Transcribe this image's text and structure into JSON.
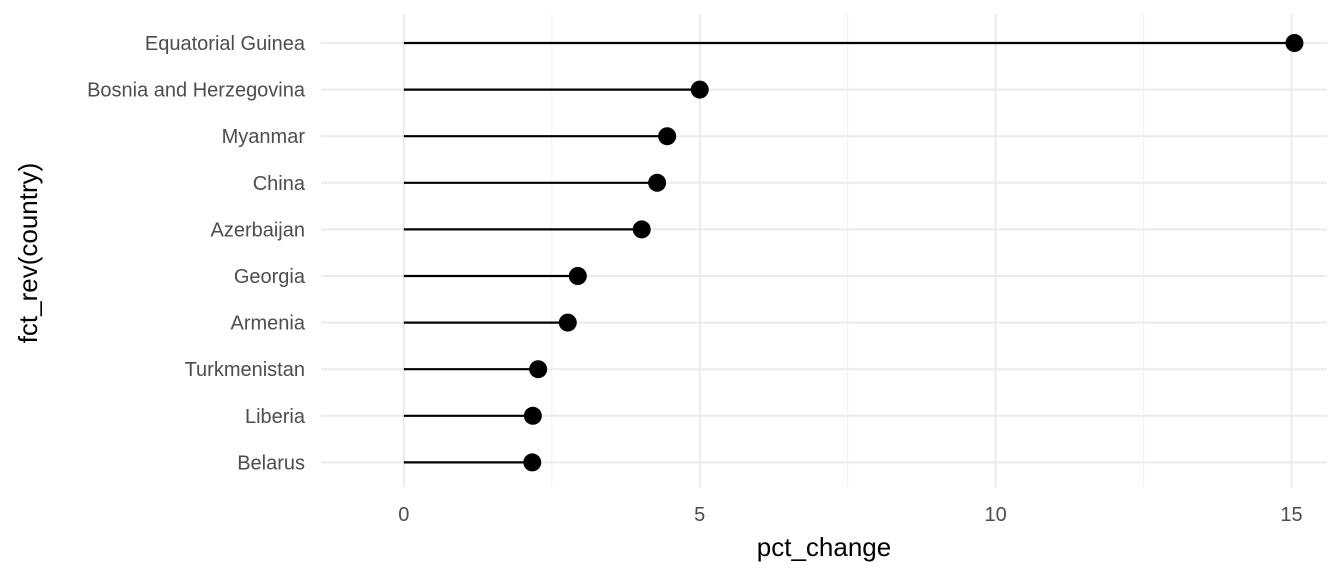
{
  "chart_data": {
    "type": "lollipop",
    "xlabel": "pct_change",
    "ylabel": "fct_rev(country)",
    "xlim": [
      -1.4,
      15.6
    ],
    "xticks": [
      0,
      5,
      10,
      15
    ],
    "grid": true,
    "categories": [
      "Equatorial Guinea",
      "Bosnia and Herzegovina",
      "Myanmar",
      "China",
      "Azerbaijan",
      "Georgia",
      "Armenia",
      "Turkmenistan",
      "Liberia",
      "Belarus"
    ],
    "values": [
      15.05,
      5.0,
      4.45,
      4.28,
      4.02,
      2.94,
      2.77,
      2.27,
      2.18,
      2.17
    ],
    "colors": {
      "mark": "#000000",
      "grid": "#ebebeb",
      "tick_text": "#4d4d4d"
    }
  }
}
